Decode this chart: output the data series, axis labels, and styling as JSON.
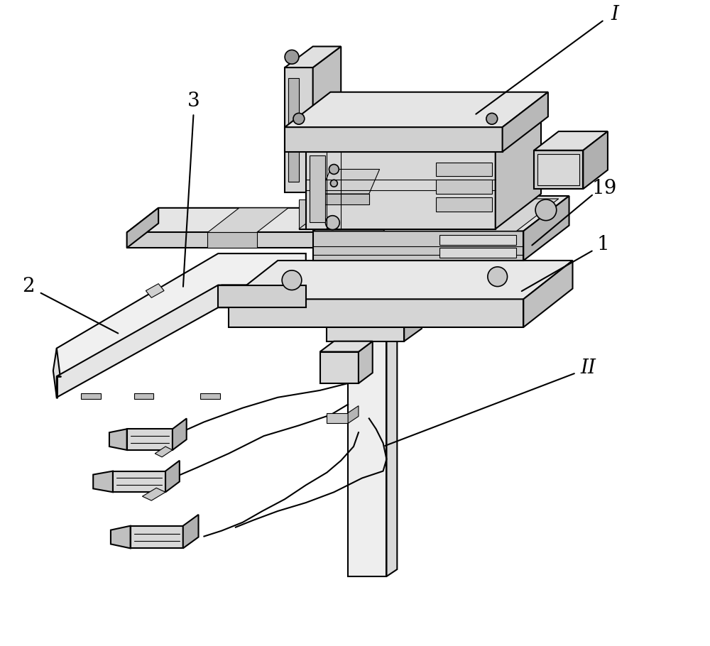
{
  "bg_color": "#ffffff",
  "line_color": "#000000",
  "fig_width": 10.0,
  "fig_height": 9.1,
  "lw_main": 1.5,
  "lw_thin": 0.8,
  "label_fontsize": 20,
  "fc_light": "#f2f2f2",
  "fc_mid": "#d8d8d8",
  "fc_dark": "#b8b8b8",
  "fc_vdark": "#a0a0a0"
}
